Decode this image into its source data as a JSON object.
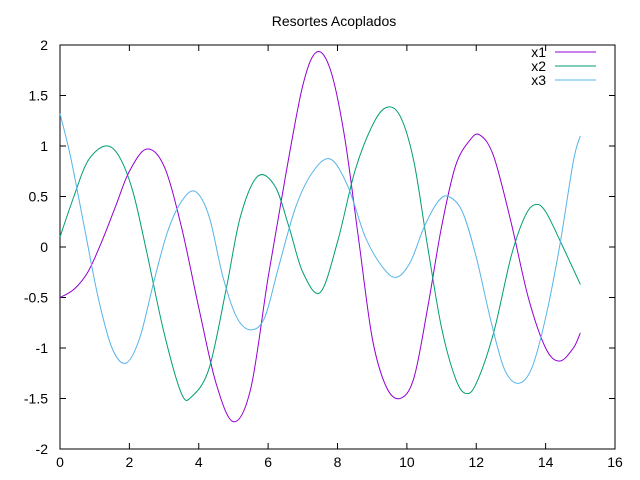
{
  "chart_data": {
    "type": "line",
    "title": "Resortes Acoplados",
    "xlabel": "",
    "ylabel": "",
    "xlim": [
      0,
      16
    ],
    "ylim": [
      -2,
      2
    ],
    "x_ticks": [
      0,
      2,
      4,
      6,
      8,
      10,
      12,
      14,
      16
    ],
    "x_tick_labels": [
      "0",
      "2",
      "4",
      "6",
      "8",
      "10",
      "12",
      "14",
      "16"
    ],
    "y_ticks": [
      -2,
      -1.5,
      -1,
      -0.5,
      0,
      0.5,
      1,
      1.5,
      2
    ],
    "y_tick_labels": [
      "-2",
      "-1.5",
      "-1",
      "-0.5",
      "0",
      "0.5",
      "1",
      "1.5",
      "2"
    ],
    "grid": false,
    "legend_position": "top-right",
    "series": [
      {
        "name": "x1",
        "color": "#9400d3",
        "x": [
          0,
          0.4,
          0.8,
          1.2,
          1.6,
          2.0,
          2.5,
          3.0,
          3.5,
          4.0,
          4.5,
          5.0,
          5.5,
          6.0,
          6.5,
          7.0,
          7.4,
          7.8,
          8.2,
          8.6,
          9.0,
          9.4,
          9.8,
          10.2,
          10.6,
          11.0,
          11.4,
          11.8,
          12.1,
          12.5,
          13.0,
          13.5,
          14.0,
          14.4,
          14.8,
          15.0
        ],
        "y": [
          -0.5,
          -0.42,
          -0.25,
          0.05,
          0.4,
          0.75,
          0.97,
          0.8,
          0.2,
          -0.6,
          -1.35,
          -1.73,
          -1.4,
          -0.3,
          0.7,
          1.6,
          1.93,
          1.75,
          1.1,
          0.1,
          -0.9,
          -1.38,
          -1.5,
          -1.3,
          -0.6,
          0.2,
          0.8,
          1.05,
          1.11,
          0.9,
          0.25,
          -0.5,
          -1.0,
          -1.13,
          -1.0,
          -0.85
        ]
      },
      {
        "name": "x2",
        "color": "#009e73",
        "x": [
          0,
          0.4,
          0.8,
          1.3,
          1.7,
          2.1,
          2.5,
          3.0,
          3.5,
          3.8,
          4.3,
          4.8,
          5.2,
          5.7,
          6.2,
          6.6,
          7.0,
          7.5,
          8.0,
          8.5,
          9.0,
          9.4,
          9.8,
          10.2,
          10.6,
          11.0,
          11.4,
          11.7,
          12.0,
          12.5,
          13.0,
          13.4,
          13.7,
          14.0,
          14.5,
          15.0
        ],
        "y": [
          0.1,
          0.5,
          0.85,
          1.0,
          0.9,
          0.55,
          -0.05,
          -0.85,
          -1.45,
          -1.48,
          -1.2,
          -0.4,
          0.3,
          0.7,
          0.6,
          0.2,
          -0.25,
          -0.45,
          0.05,
          0.75,
          1.2,
          1.38,
          1.3,
          0.85,
          0.0,
          -0.8,
          -1.3,
          -1.45,
          -1.35,
          -0.85,
          -0.1,
          0.3,
          0.42,
          0.35,
          0.0,
          -0.37
        ]
      },
      {
        "name": "x3",
        "color": "#56b4e9",
        "x": [
          0,
          0.3,
          0.7,
          1.1,
          1.5,
          1.9,
          2.3,
          2.7,
          3.1,
          3.5,
          3.9,
          4.3,
          4.7,
          5.1,
          5.5,
          5.9,
          6.3,
          6.8,
          7.3,
          7.8,
          8.3,
          8.8,
          9.3,
          9.7,
          10.1,
          10.5,
          10.9,
          11.2,
          11.6,
          12.0,
          12.4,
          12.8,
          13.2,
          13.6,
          14.0,
          14.4,
          14.8,
          15.0
        ],
        "y": [
          1.32,
          0.9,
          0.2,
          -0.5,
          -1.0,
          -1.15,
          -0.9,
          -0.35,
          0.15,
          0.45,
          0.55,
          0.3,
          -0.3,
          -0.7,
          -0.82,
          -0.7,
          -0.2,
          0.4,
          0.75,
          0.87,
          0.6,
          0.1,
          -0.2,
          -0.3,
          -0.15,
          0.2,
          0.45,
          0.5,
          0.35,
          -0.1,
          -0.7,
          -1.2,
          -1.35,
          -1.2,
          -0.7,
          0.0,
          0.85,
          1.1
        ]
      }
    ]
  }
}
